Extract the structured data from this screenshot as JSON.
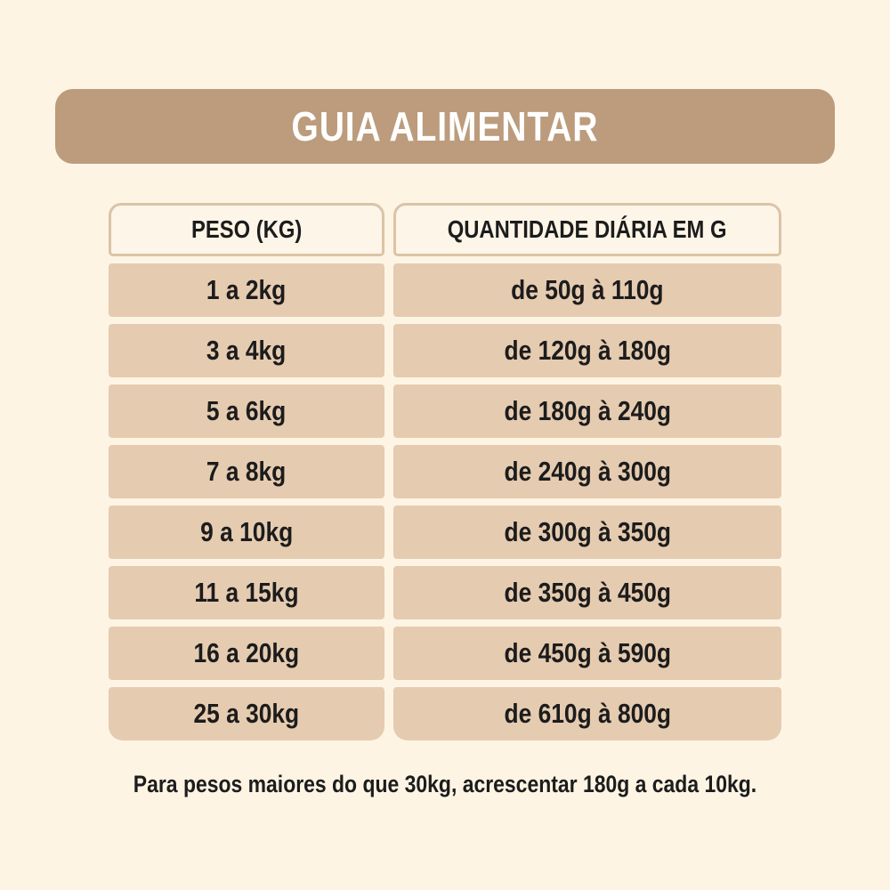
{
  "header": {
    "title": "GUIA ALIMENTAR"
  },
  "table": {
    "columns": [
      "PESO (KG)",
      "QUANTIDADE DIÁRIA EM G"
    ],
    "rows": [
      {
        "peso": "1 a 2kg",
        "quantidade": "de 50g à 110g"
      },
      {
        "peso": "3 a 4kg",
        "quantidade": "de 120g à 180g"
      },
      {
        "peso": "5 a 6kg",
        "quantidade": "de 180g à 240g"
      },
      {
        "peso": "7 a 8kg",
        "quantidade": "de 240g à 300g"
      },
      {
        "peso": "9 a 10kg",
        "quantidade": "de 300g à 350g"
      },
      {
        "peso": "11 a 15kg",
        "quantidade": "de 350g à 450g"
      },
      {
        "peso": "16 a 20kg",
        "quantidade": "de 450g à 590g"
      },
      {
        "peso": "25 a 30kg",
        "quantidade": "de 610g à 800g"
      }
    ]
  },
  "footer": {
    "note": "Para pesos maiores do que 30kg, acrescentar 180g a cada 10kg."
  },
  "colors": {
    "background": "#FDF4E4",
    "banner": "#BC9C7C",
    "banner_text": "#FFFFFF",
    "row_background": "#E5CBB0",
    "header_cell_background": "#FDF5E7",
    "header_cell_border": "#DCC3A7",
    "text": "#1C1C1C"
  },
  "chart_data": {
    "type": "table",
    "title": "GUIA ALIMENTAR",
    "columns": [
      "PESO (KG)",
      "QUANTIDADE DIÁRIA EM G"
    ],
    "rows": [
      [
        "1 a 2kg",
        "de 50g à 110g"
      ],
      [
        "3 a 4kg",
        "de 120g à 180g"
      ],
      [
        "5 a 6kg",
        "de 180g à 240g"
      ],
      [
        "7 a 8kg",
        "de 240g à 300g"
      ],
      [
        "9 a 10kg",
        "de 300g à 350g"
      ],
      [
        "11 a 15kg",
        "de 350g à 450g"
      ],
      [
        "16 a 20kg",
        "de 450g à 590g"
      ],
      [
        "25 a 30kg",
        "de 610g à 800g"
      ]
    ],
    "note": "Para pesos maiores do que 30kg, acrescentar 180g a cada 10kg."
  }
}
